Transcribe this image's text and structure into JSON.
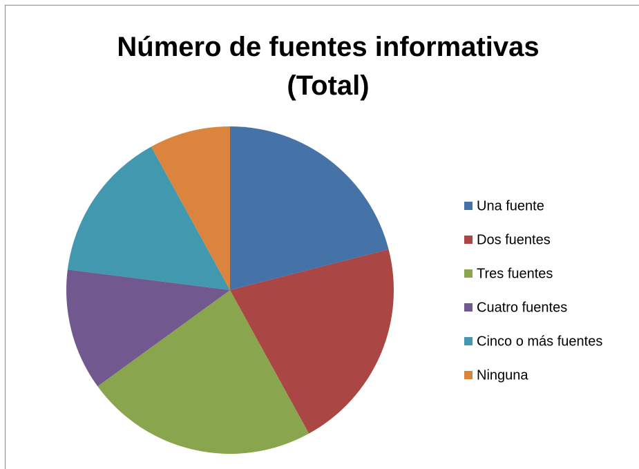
{
  "chart_data": {
    "type": "pie",
    "title": "Número de fuentes informativas (Total)",
    "categories": [
      "Una fuente",
      "Dos fuentes",
      "Tres fuentes",
      "Cuatro fuentes",
      "Cinco o más fuentes",
      "Ninguna"
    ],
    "values": [
      21,
      21,
      23,
      12,
      15,
      8
    ],
    "colors": [
      "#4572a7",
      "#aa4643",
      "#89a54e",
      "#71588f",
      "#4198af",
      "#db843d"
    ],
    "legend": "right"
  }
}
